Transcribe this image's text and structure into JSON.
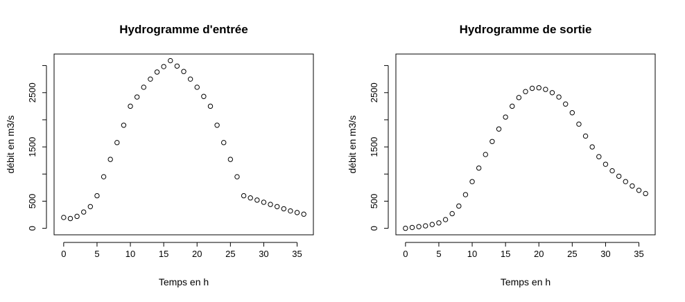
{
  "chart_data": [
    {
      "type": "scatter",
      "title": "Hydrogramme d'entrée",
      "xlabel": "Temps en h",
      "ylabel": "débit en m3/s",
      "xlim": [
        -1.44,
        37.44
      ],
      "ylim": [
        -120,
        3212
      ],
      "xticks": [
        0,
        5,
        10,
        15,
        20,
        25,
        30,
        35
      ],
      "yticks": [
        0,
        500,
        1500,
        2500
      ],
      "yticks_minor": [
        1000,
        2000,
        3000
      ],
      "marker": "open-circle",
      "color": "#000000",
      "x": [
        0,
        1,
        2,
        3,
        4,
        5,
        6,
        7,
        8,
        9,
        10,
        11,
        12,
        13,
        14,
        15,
        16,
        17,
        18,
        19,
        20,
        21,
        22,
        23,
        24,
        25,
        26,
        27,
        28,
        29,
        30,
        31,
        32,
        33,
        34,
        35,
        36
      ],
      "y": [
        200,
        180,
        220,
        300,
        400,
        600,
        950,
        1270,
        1580,
        1900,
        2250,
        2420,
        2600,
        2750,
        2880,
        2980,
        3090,
        2990,
        2890,
        2750,
        2600,
        2430,
        2250,
        1900,
        1580,
        1270,
        950,
        600,
        560,
        520,
        480,
        440,
        400,
        360,
        320,
        290,
        260
      ]
    },
    {
      "type": "scatter",
      "title": "Hydrogramme de sortie",
      "xlabel": "Temps en h",
      "ylabel": "débit en m3/s",
      "xlim": [
        -1.44,
        37.44
      ],
      "ylim": [
        -120,
        3212
      ],
      "xticks": [
        0,
        5,
        10,
        15,
        20,
        25,
        30,
        35
      ],
      "yticks": [
        0,
        500,
        1500,
        2500
      ],
      "yticks_minor": [
        1000,
        2000,
        3000
      ],
      "marker": "open-circle",
      "color": "#000000",
      "x": [
        0,
        1,
        2,
        3,
        4,
        5,
        6,
        7,
        8,
        9,
        10,
        11,
        12,
        13,
        14,
        15,
        16,
        17,
        18,
        19,
        20,
        21,
        22,
        23,
        24,
        25,
        26,
        27,
        28,
        29,
        30,
        31,
        32,
        33,
        34,
        35,
        36
      ],
      "y": [
        0,
        15,
        30,
        45,
        70,
        100,
        160,
        270,
        410,
        620,
        860,
        1110,
        1360,
        1600,
        1830,
        2050,
        2250,
        2410,
        2520,
        2580,
        2590,
        2560,
        2500,
        2420,
        2290,
        2130,
        1920,
        1700,
        1500,
        1320,
        1180,
        1060,
        960,
        860,
        780,
        700,
        640
      ]
    }
  ]
}
